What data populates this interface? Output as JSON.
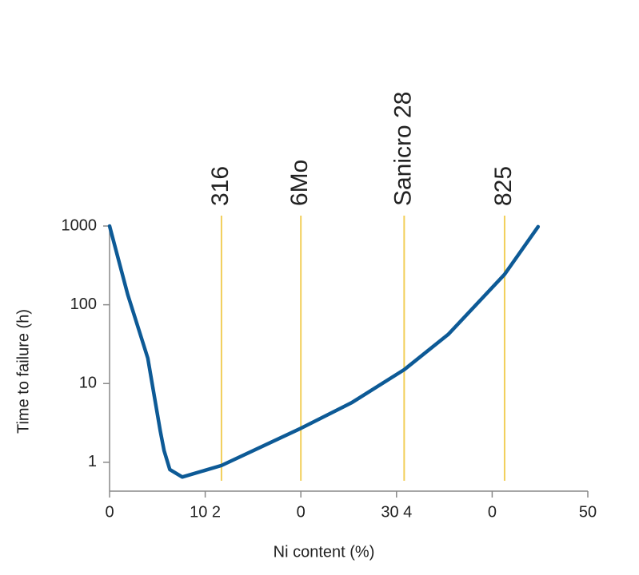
{
  "chart_data": {
    "type": "line",
    "x_label": "Ni content (%)",
    "y_label": "Time to failure (h)",
    "x": [
      0,
      1.9,
      4,
      5.3,
      5.7,
      6.3,
      7.6,
      11.7,
      20,
      25.3,
      30.8,
      35.4,
      41.3,
      44.8
    ],
    "values": [
      1000,
      135,
      21,
      2.5,
      1.4,
      0.81,
      0.65,
      0.91,
      2.7,
      5.7,
      15,
      42,
      243,
      980
    ],
    "color": "#0d5a96",
    "xlim": [
      0,
      50
    ],
    "xticks": [
      0,
      {
        "value": 10,
        "label": "10 2"
      },
      {
        "value": 20,
        "label": "0"
      },
      {
        "value": 30,
        "label": "30 4"
      },
      {
        "value": 40,
        "label": "0"
      },
      50
    ],
    "ylim": [
      0.43,
      1000
    ],
    "yticks": [
      1,
      10,
      100,
      1000
    ],
    "yscale": "log",
    "annotation_color": "#f2cf5a",
    "annotations": [
      {
        "label": "316",
        "x": 11.7
      },
      {
        "label": "6Mo",
        "x": 20
      },
      {
        "label": "Sanicro 28",
        "x": 30.8
      },
      {
        "label": "825",
        "x": 41.3
      }
    ]
  }
}
